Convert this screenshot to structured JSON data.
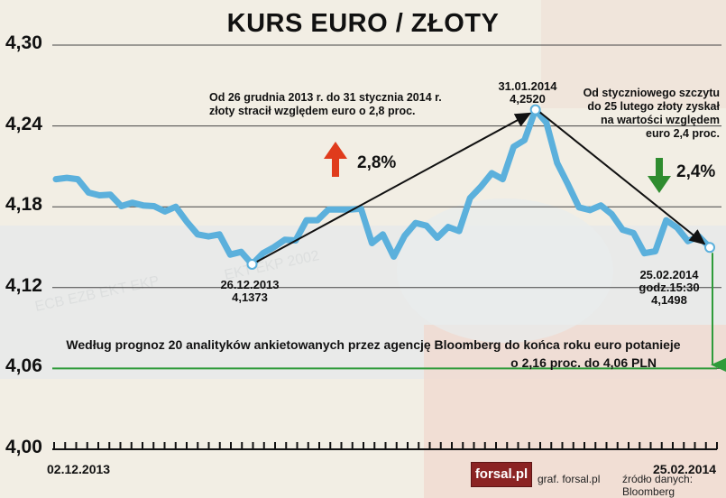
{
  "title": "KURS EURO / ZŁOTY",
  "chart_data": {
    "type": "line",
    "title": "KURS EURO / ZŁOTY",
    "ylim": [
      4.0,
      4.3
    ],
    "yticks": [
      "4,30",
      "4,24",
      "4,18",
      "4,12",
      "4,06",
      "4,00"
    ],
    "x_start_label": "02.12.2013",
    "x_end_label": "25.02.2014",
    "grid": true,
    "series": [
      {
        "color": "#5bb0dc",
        "values": [
          4.2005,
          4.2015,
          4.2005,
          4.1905,
          4.1885,
          4.189,
          4.1805,
          4.183,
          4.181,
          4.1805,
          4.1765,
          4.18,
          4.169,
          4.1595,
          4.158,
          4.1595,
          4.1445,
          4.1465,
          4.1373,
          4.1455,
          4.15,
          4.1555,
          4.155,
          4.17,
          4.17,
          4.178,
          4.178,
          4.178,
          4.1785,
          4.153,
          4.1595,
          4.143,
          4.1585,
          4.168,
          4.166,
          4.157,
          4.165,
          4.162,
          4.1865,
          4.195,
          4.205,
          4.2005,
          4.2245,
          4.2295,
          4.252,
          4.2425,
          4.2125,
          4.1965,
          4.1795,
          4.1775,
          4.181,
          4.1745,
          4.163,
          4.1605,
          4.1455,
          4.147,
          4.17,
          4.1645,
          4.1545,
          4.158,
          4.1498
        ]
      }
    ],
    "annotations": {
      "low": {
        "date": "26.12.2013",
        "value": "4,1373"
      },
      "high": {
        "date": "31.01.2014",
        "value": "4,2520"
      },
      "last": {
        "date": "25.02.2014",
        "time": "godz.15:30",
        "value": "4,1498"
      },
      "forecast_level": 4.06
    },
    "colors": {
      "line": "#5bb0dc",
      "forecast": "#2e9b3a",
      "up_arrow": "#e03b1c",
      "down_arrow": "#2f8c2f",
      "grid": "#444444"
    }
  },
  "notes": {
    "rise": [
      "Od 26 grudnia 2013 r. do 31 stycznia 2014 r.",
      "złoty stracił względem euro o 2,8 proc."
    ],
    "fall": [
      "Od styczniowego szczytu",
      "do 25 lutego złoty zyskał",
      "na wartości względem",
      "euro 2,4 proc."
    ],
    "rise_pct": "2,8%",
    "fall_pct": "2,4%",
    "forecast": [
      "Według prognoz 20 analityków ankietowanych przez agencję Bloomberg do końca roku euro potanieje",
      "o 2,16 proc. do 4,06 PLN"
    ]
  },
  "footer": {
    "logo": "forsal.pl",
    "graf": "graf. forsal.pl",
    "source": "źródło danych: Bloomberg"
  }
}
